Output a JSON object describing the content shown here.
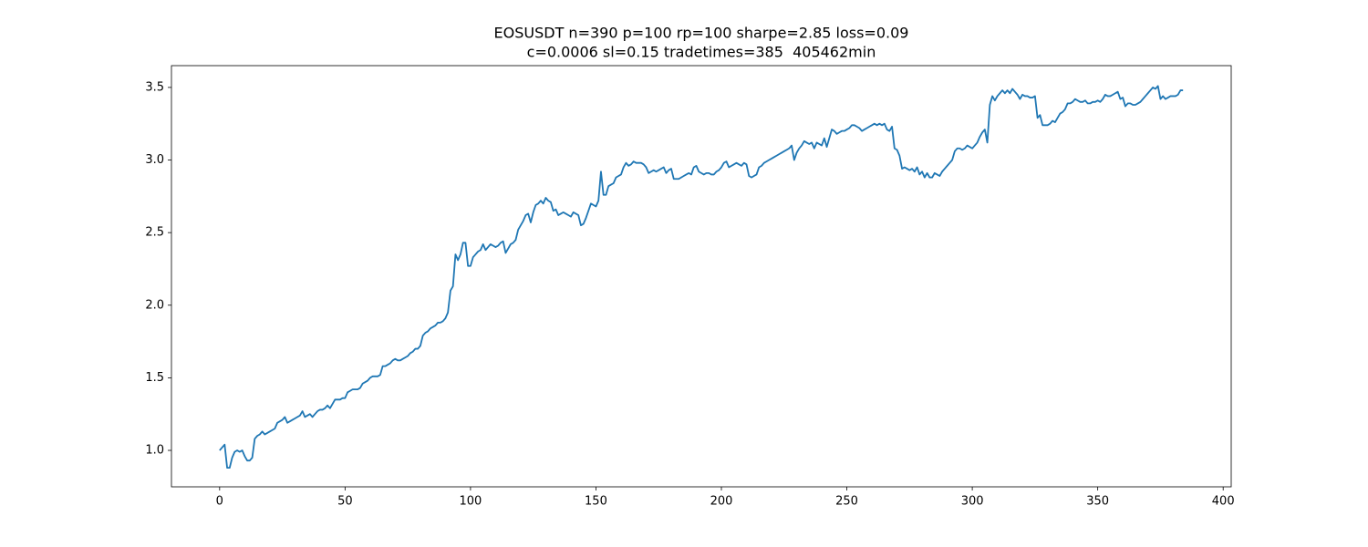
{
  "chart_data": {
    "type": "line",
    "title": [
      "EOSUSDT n=390 p=100 rp=100 sharpe=2.85 loss=0.09",
      "c=0.0006 sl=0.15 tradetimes=385  405462min"
    ],
    "color": "#1f77b4",
    "grid": false,
    "xlim": [
      -19.2,
      403.2
    ],
    "xticks": [
      0,
      50,
      100,
      150,
      200,
      250,
      300,
      350,
      400
    ],
    "ylim": [
      0.749,
      3.65
    ],
    "yticks": [
      {
        "value": 1,
        "label": "1.0"
      },
      1.5,
      {
        "value": 2,
        "label": "2.0"
      },
      2.5,
      {
        "value": 3,
        "label": "3.0"
      },
      3.5
    ],
    "x": [
      0,
      1,
      2,
      3,
      4,
      5,
      6,
      7,
      8,
      9,
      10,
      11,
      12,
      13,
      14,
      15,
      16,
      17,
      18,
      19,
      20,
      21,
      22,
      23,
      24,
      25,
      26,
      27,
      28,
      29,
      30,
      31,
      32,
      33,
      34,
      35,
      36,
      37,
      38,
      39,
      40,
      41,
      42,
      43,
      44,
      45,
      46,
      47,
      48,
      49,
      50,
      51,
      52,
      53,
      54,
      55,
      56,
      57,
      58,
      59,
      60,
      61,
      62,
      63,
      64,
      65,
      66,
      67,
      68,
      69,
      70,
      71,
      72,
      73,
      74,
      75,
      76,
      77,
      78,
      79,
      80,
      81,
      82,
      83,
      84,
      85,
      86,
      87,
      88,
      89,
      90,
      91,
      92,
      93,
      94,
      95,
      96,
      97,
      98,
      99,
      100,
      101,
      102,
      103,
      104,
      105,
      106,
      107,
      108,
      109,
      110,
      111,
      112,
      113,
      114,
      115,
      116,
      117,
      118,
      119,
      120,
      121,
      122,
      123,
      124,
      125,
      126,
      127,
      128,
      129,
      130,
      131,
      132,
      133,
      134,
      135,
      136,
      137,
      138,
      139,
      140,
      141,
      142,
      143,
      144,
      145,
      146,
      147,
      148,
      149,
      150,
      151,
      152,
      153,
      154,
      155,
      156,
      157,
      158,
      159,
      160,
      161,
      162,
      163,
      164,
      165,
      166,
      167,
      168,
      169,
      170,
      171,
      172,
      173,
      174,
      175,
      176,
      177,
      178,
      179,
      180,
      181,
      182,
      183,
      184,
      185,
      186,
      187,
      188,
      189,
      190,
      191,
      192,
      193,
      194,
      195,
      196,
      197,
      198,
      199,
      200,
      201,
      202,
      203,
      204,
      205,
      206,
      207,
      208,
      209,
      210,
      211,
      212,
      213,
      214,
      215,
      216,
      217,
      218,
      219,
      220,
      221,
      222,
      223,
      224,
      225,
      226,
      227,
      228,
      229,
      230,
      231,
      232,
      233,
      234,
      235,
      236,
      237,
      238,
      239,
      240,
      241,
      242,
      243,
      244,
      245,
      246,
      247,
      248,
      249,
      250,
      251,
      252,
      253,
      254,
      255,
      256,
      257,
      258,
      259,
      260,
      261,
      262,
      263,
      264,
      265,
      266,
      267,
      268,
      269,
      270,
      271,
      272,
      273,
      274,
      275,
      276,
      277,
      278,
      279,
      280,
      281,
      282,
      283,
      284,
      285,
      286,
      287,
      288,
      289,
      290,
      291,
      292,
      293,
      294,
      295,
      296,
      297,
      298,
      299,
      300,
      301,
      302,
      303,
      304,
      305,
      306,
      307,
      308,
      309,
      310,
      311,
      312,
      313,
      314,
      315,
      316,
      317,
      318,
      319,
      320,
      321,
      322,
      323,
      324,
      325,
      326,
      327,
      328,
      329,
      330,
      331,
      332,
      333,
      334,
      335,
      336,
      337,
      338,
      339,
      340,
      341,
      342,
      343,
      344,
      345,
      346,
      347,
      348,
      349,
      350,
      351,
      352,
      353,
      354,
      355,
      356,
      357,
      358,
      359,
      360,
      361,
      362,
      363,
      364,
      365,
      366,
      367,
      368,
      369,
      370,
      371,
      372,
      373,
      374,
      375,
      376,
      377,
      378,
      379,
      380,
      381,
      382,
      383,
      384
    ],
    "values": [
      1.0,
      1.02,
      1.04,
      0.88,
      0.88,
      0.95,
      0.99,
      1.0,
      0.99,
      1.0,
      0.96,
      0.93,
      0.93,
      0.95,
      1.08,
      1.1,
      1.11,
      1.13,
      1.11,
      1.12,
      1.13,
      1.14,
      1.15,
      1.19,
      1.2,
      1.21,
      1.23,
      1.19,
      1.2,
      1.21,
      1.22,
      1.23,
      1.24,
      1.27,
      1.23,
      1.24,
      1.25,
      1.23,
      1.25,
      1.27,
      1.28,
      1.28,
      1.29,
      1.31,
      1.29,
      1.32,
      1.35,
      1.35,
      1.35,
      1.36,
      1.36,
      1.4,
      1.41,
      1.42,
      1.42,
      1.42,
      1.43,
      1.46,
      1.47,
      1.48,
      1.5,
      1.51,
      1.51,
      1.51,
      1.52,
      1.58,
      1.58,
      1.59,
      1.6,
      1.62,
      1.63,
      1.62,
      1.62,
      1.63,
      1.64,
      1.65,
      1.67,
      1.68,
      1.7,
      1.7,
      1.72,
      1.79,
      1.81,
      1.82,
      1.84,
      1.85,
      1.86,
      1.88,
      1.88,
      1.89,
      1.91,
      1.95,
      2.1,
      2.13,
      2.35,
      2.31,
      2.35,
      2.43,
      2.43,
      2.27,
      2.27,
      2.33,
      2.35,
      2.37,
      2.38,
      2.42,
      2.38,
      2.4,
      2.42,
      2.41,
      2.4,
      2.41,
      2.43,
      2.44,
      2.36,
      2.39,
      2.42,
      2.43,
      2.45,
      2.52,
      2.55,
      2.58,
      2.62,
      2.63,
      2.57,
      2.64,
      2.69,
      2.7,
      2.72,
      2.7,
      2.74,
      2.72,
      2.71,
      2.65,
      2.66,
      2.62,
      2.63,
      2.64,
      2.63,
      2.62,
      2.61,
      2.64,
      2.63,
      2.62,
      2.55,
      2.56,
      2.6,
      2.65,
      2.7,
      2.69,
      2.68,
      2.72,
      2.92,
      2.76,
      2.76,
      2.82,
      2.83,
      2.84,
      2.88,
      2.89,
      2.9,
      2.95,
      2.98,
      2.96,
      2.97,
      2.99,
      2.98,
      2.98,
      2.98,
      2.97,
      2.95,
      2.91,
      2.92,
      2.93,
      2.92,
      2.93,
      2.94,
      2.95,
      2.91,
      2.93,
      2.94,
      2.87,
      2.87,
      2.87,
      2.88,
      2.89,
      2.9,
      2.91,
      2.9,
      2.95,
      2.96,
      2.92,
      2.91,
      2.9,
      2.91,
      2.91,
      2.9,
      2.9,
      2.92,
      2.93,
      2.95,
      2.98,
      2.99,
      2.95,
      2.96,
      2.97,
      2.98,
      2.97,
      2.96,
      2.98,
      2.97,
      2.89,
      2.88,
      2.89,
      2.9,
      2.95,
      2.96,
      2.98,
      2.99,
      3.0,
      3.01,
      3.02,
      3.03,
      3.04,
      3.05,
      3.06,
      3.07,
      3.08,
      3.1,
      3.0,
      3.05,
      3.08,
      3.1,
      3.13,
      3.12,
      3.11,
      3.12,
      3.08,
      3.12,
      3.11,
      3.1,
      3.15,
      3.09,
      3.15,
      3.21,
      3.2,
      3.18,
      3.19,
      3.2,
      3.2,
      3.21,
      3.22,
      3.24,
      3.24,
      3.23,
      3.22,
      3.2,
      3.21,
      3.22,
      3.23,
      3.24,
      3.25,
      3.24,
      3.25,
      3.24,
      3.25,
      3.21,
      3.2,
      3.23,
      3.08,
      3.07,
      3.03,
      2.94,
      2.95,
      2.94,
      2.93,
      2.94,
      2.92,
      2.95,
      2.9,
      2.92,
      2.88,
      2.91,
      2.88,
      2.88,
      2.91,
      2.9,
      2.89,
      2.92,
      2.94,
      2.96,
      2.98,
      3.0,
      3.06,
      3.08,
      3.08,
      3.07,
      3.08,
      3.1,
      3.09,
      3.08,
      3.1,
      3.12,
      3.16,
      3.19,
      3.21,
      3.12,
      3.38,
      3.44,
      3.41,
      3.44,
      3.46,
      3.48,
      3.46,
      3.48,
      3.46,
      3.49,
      3.47,
      3.45,
      3.42,
      3.45,
      3.44,
      3.44,
      3.43,
      3.43,
      3.44,
      3.29,
      3.31,
      3.24,
      3.24,
      3.24,
      3.25,
      3.27,
      3.26,
      3.29,
      3.32,
      3.33,
      3.35,
      3.39,
      3.39,
      3.4,
      3.42,
      3.41,
      3.4,
      3.4,
      3.41,
      3.39,
      3.39,
      3.4,
      3.4,
      3.41,
      3.4,
      3.42,
      3.45,
      3.44,
      3.44,
      3.45,
      3.46,
      3.47,
      3.42,
      3.43,
      3.37,
      3.39,
      3.39,
      3.38,
      3.38,
      3.39,
      3.4,
      3.42,
      3.44,
      3.46,
      3.48,
      3.5,
      3.49,
      3.51,
      3.42,
      3.44,
      3.42,
      3.43,
      3.44,
      3.44,
      3.44,
      3.45,
      3.48,
      3.48
    ]
  }
}
